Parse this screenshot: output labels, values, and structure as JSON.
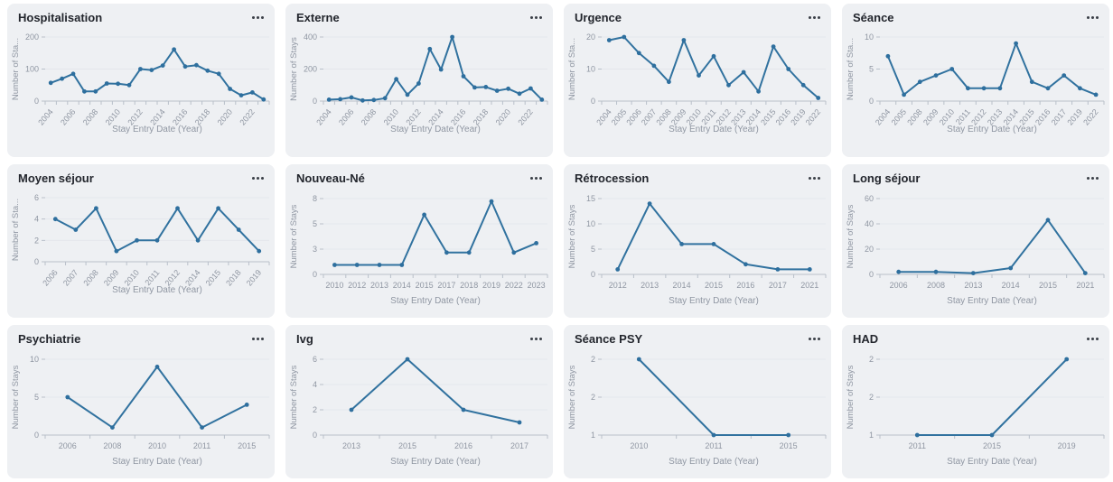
{
  "page": {
    "background": "#ffffff"
  },
  "card": {
    "background": "#eef0f3",
    "menu_icon": "ellipsis"
  },
  "colors": {
    "line": "#31729f",
    "marker": "#2e6f9e",
    "axis_text": "#8f96a2",
    "grid_line": "#e4e7ec",
    "axis_line": "#b9c0ca",
    "title_text": "#23262d"
  },
  "chart_data": [
    {
      "type": "line",
      "title": "Hospitalisation",
      "ylabel": "Number of Sta...",
      "xlabel": "Stay Entry Date (Year)",
      "categories": [
        "2004",
        "2005",
        "2006",
        "2007",
        "2008",
        "2009",
        "2010",
        "2011",
        "2012",
        "2013",
        "2014",
        "2015",
        "2016",
        "2017",
        "2018",
        "2019",
        "2020",
        "2021",
        "2022",
        "2023"
      ],
      "values": [
        57,
        70,
        85,
        30,
        30,
        55,
        54,
        50,
        100,
        97,
        111,
        161,
        108,
        112,
        95,
        85,
        38,
        18,
        27,
        5
      ],
      "x_labels_shown": [
        "2004",
        "2006",
        "2008",
        "2010",
        "2012",
        "2014",
        "2016",
        "2018",
        "2020",
        "2022"
      ],
      "rotated_x_labels": true,
      "y_min": 0,
      "y_max": 200,
      "y_ticks": [
        {
          "v": 0,
          "label": "0"
        },
        {
          "v": 100,
          "label": "100"
        },
        {
          "v": 200,
          "label": "200"
        }
      ]
    },
    {
      "type": "line",
      "title": "Externe",
      "ylabel": "Number of Stays",
      "xlabel": "Stay Entry Date (Year)",
      "categories": [
        "2004",
        "2005",
        "2006",
        "2007",
        "2008",
        "2009",
        "2010",
        "2011",
        "2012",
        "2013",
        "2014",
        "2015",
        "2016",
        "2017",
        "2018",
        "2019",
        "2020",
        "2021",
        "2022",
        "2023"
      ],
      "values": [
        9,
        12,
        23,
        4,
        7,
        18,
        137,
        40,
        110,
        325,
        197,
        400,
        155,
        85,
        88,
        65,
        77,
        46,
        79,
        9
      ],
      "x_labels_shown": [
        "2004",
        "2006",
        "2008",
        "2010",
        "2012",
        "2014",
        "2016",
        "2018",
        "2020",
        "2022"
      ],
      "rotated_x_labels": true,
      "y_min": 0,
      "y_max": 400,
      "y_ticks": [
        {
          "v": 0,
          "label": "0"
        },
        {
          "v": 200,
          "label": "200"
        },
        {
          "v": 400,
          "label": "400"
        }
      ]
    },
    {
      "type": "line",
      "title": "Urgence",
      "ylabel": "Number of Sta...",
      "xlabel": "Stay Entry Date (Year)",
      "categories": [
        "2004",
        "2005",
        "2006",
        "2007",
        "2008",
        "2009",
        "2010",
        "2011",
        "2012",
        "2013",
        "2014",
        "2015",
        "2016",
        "2019",
        "2022"
      ],
      "values": [
        19,
        20,
        15,
        11,
        6,
        19,
        8,
        14,
        5,
        9,
        3,
        17,
        10,
        5,
        1
      ],
      "rotated_x_labels": true,
      "y_min": 0,
      "y_max": 20,
      "y_ticks": [
        {
          "v": 0,
          "label": "0"
        },
        {
          "v": 10,
          "label": "10"
        },
        {
          "v": 20,
          "label": "20"
        }
      ]
    },
    {
      "type": "line",
      "title": "Séance",
      "ylabel": "Number of Sta...",
      "xlabel": "Stay Entry Date (Year)",
      "categories": [
        "2004",
        "2005",
        "2008",
        "2009",
        "2010",
        "2011",
        "2012",
        "2013",
        "2014",
        "2015",
        "2016",
        "2017",
        "2019",
        "2022"
      ],
      "values": [
        7,
        1,
        3,
        4,
        5,
        2,
        2,
        2,
        9,
        3,
        2,
        4,
        2,
        1
      ],
      "rotated_x_labels": true,
      "y_min": 0,
      "y_max": 10,
      "y_ticks": [
        {
          "v": 0,
          "label": "0"
        },
        {
          "v": 5,
          "label": "5"
        },
        {
          "v": 10,
          "label": "10"
        }
      ]
    },
    {
      "type": "line",
      "title": "Moyen séjour",
      "ylabel": "Number of Sta...",
      "xlabel": "Stay Entry Date (Year)",
      "categories": [
        "2006",
        "2007",
        "2008",
        "2009",
        "2010",
        "2011",
        "2012",
        "2014",
        "2015",
        "2018",
        "2019"
      ],
      "values": [
        4,
        3,
        5,
        1,
        2,
        2,
        5,
        2,
        5,
        3,
        1
      ],
      "rotated_x_labels": true,
      "y_min": 0,
      "y_max": 6,
      "y_ticks": [
        {
          "v": 0,
          "label": "0"
        },
        {
          "v": 2,
          "label": "2"
        },
        {
          "v": 4,
          "label": "4"
        },
        {
          "v": 6,
          "label": "6"
        }
      ]
    },
    {
      "type": "line",
      "title": "Nouveau-Né",
      "ylabel": "Number of Stays",
      "xlabel": "Stay Entry Date (Year)",
      "categories": [
        "2010",
        "2012",
        "2013",
        "2014",
        "2015",
        "2017",
        "2018",
        "2019",
        "2022",
        "2023"
      ],
      "values": [
        1,
        1,
        1,
        1,
        6.3,
        2.3,
        2.3,
        7.7,
        2.3,
        3.3
      ],
      "rotated_x_labels": false,
      "y_min": 0,
      "y_max": 8,
      "y_ticks": [
        {
          "v": 0,
          "label": "0"
        },
        {
          "v": 2.67,
          "label": "3"
        },
        {
          "v": 5.33,
          "label": "5"
        },
        {
          "v": 8,
          "label": "8"
        }
      ]
    },
    {
      "type": "line",
      "title": "Rétrocession",
      "ylabel": "Number of Stays",
      "xlabel": "Stay Entry Date (Year)",
      "categories": [
        "2012",
        "2013",
        "2014",
        "2015",
        "2016",
        "2017",
        "2021"
      ],
      "values": [
        1,
        14,
        6,
        6,
        2,
        1,
        1
      ],
      "rotated_x_labels": false,
      "y_min": 0,
      "y_max": 15,
      "y_ticks": [
        {
          "v": 0,
          "label": "0"
        },
        {
          "v": 5,
          "label": "5"
        },
        {
          "v": 10,
          "label": "10"
        },
        {
          "v": 15,
          "label": "15"
        }
      ]
    },
    {
      "type": "line",
      "title": "Long séjour",
      "ylabel": "Number of Stays",
      "xlabel": "Stay Entry Date (Year)",
      "categories": [
        "2006",
        "2008",
        "2013",
        "2014",
        "2015",
        "2021"
      ],
      "values": [
        2,
        2,
        1,
        5,
        43,
        1
      ],
      "rotated_x_labels": false,
      "y_min": 0,
      "y_max": 60,
      "y_ticks": [
        {
          "v": 0,
          "label": "0"
        },
        {
          "v": 20,
          "label": "20"
        },
        {
          "v": 40,
          "label": "40"
        },
        {
          "v": 60,
          "label": "60"
        }
      ]
    },
    {
      "type": "line",
      "title": "Psychiatrie",
      "ylabel": "Number of Stays",
      "xlabel": "Stay Entry Date (Year)",
      "categories": [
        "2006",
        "2008",
        "2010",
        "2011",
        "2015"
      ],
      "values": [
        5,
        1,
        9,
        1,
        4
      ],
      "rotated_x_labels": false,
      "y_min": 0,
      "y_max": 10,
      "y_ticks": [
        {
          "v": 0,
          "label": "0"
        },
        {
          "v": 5,
          "label": "5"
        },
        {
          "v": 10,
          "label": "10"
        }
      ]
    },
    {
      "type": "line",
      "title": "Ivg",
      "ylabel": "Number of Stays",
      "xlabel": "Stay Entry Date (Year)",
      "categories": [
        "2013",
        "2015",
        "2016",
        "2017"
      ],
      "values": [
        2,
        6,
        2,
        1
      ],
      "rotated_x_labels": false,
      "y_min": 0,
      "y_max": 6,
      "y_ticks": [
        {
          "v": 0,
          "label": "0"
        },
        {
          "v": 2,
          "label": "2"
        },
        {
          "v": 4,
          "label": "4"
        },
        {
          "v": 6,
          "label": "6"
        }
      ]
    },
    {
      "type": "line",
      "title": "Séance PSY",
      "ylabel": "Number of Stays",
      "xlabel": "Stay Entry Date (Year)",
      "categories": [
        "2010",
        "2011",
        "2015"
      ],
      "values": [
        2,
        1,
        1
      ],
      "rotated_x_labels": false,
      "y_min": 1,
      "y_max": 2,
      "y_ticks": [
        {
          "v": 1,
          "label": "1"
        },
        {
          "v": 1.5,
          "label": "2"
        },
        {
          "v": 2,
          "label": "2"
        }
      ]
    },
    {
      "type": "line",
      "title": "HAD",
      "ylabel": "Number of Stays",
      "xlabel": "Stay Entry Date (Year)",
      "categories": [
        "2011",
        "2015",
        "2019"
      ],
      "values": [
        1,
        1,
        2
      ],
      "rotated_x_labels": false,
      "y_min": 1,
      "y_max": 2,
      "y_ticks": [
        {
          "v": 1,
          "label": "1"
        },
        {
          "v": 1.5,
          "label": "2"
        },
        {
          "v": 2,
          "label": "2"
        }
      ]
    }
  ]
}
